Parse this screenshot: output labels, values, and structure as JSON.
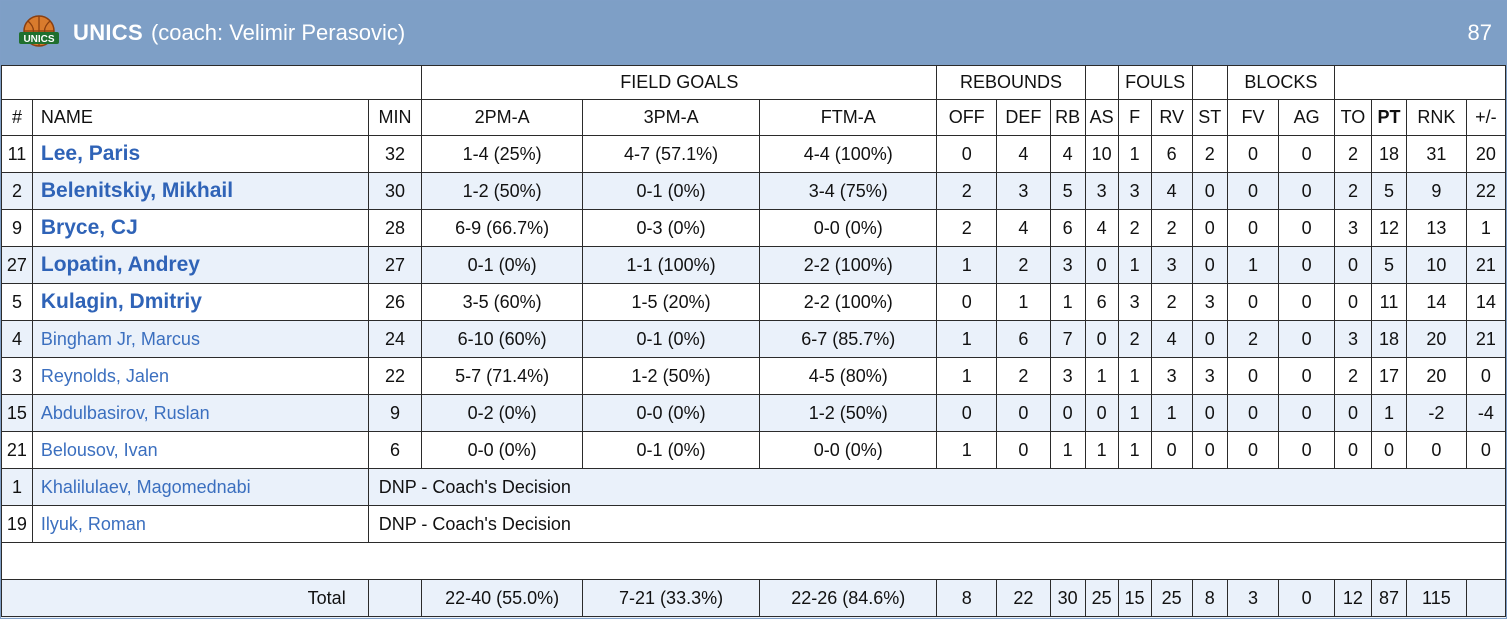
{
  "team": {
    "name": "UNICS",
    "coach": "(coach: Velimir Perasovic)",
    "score": "87",
    "logo_text": "UNICS",
    "colors": {
      "header_bg": "#7e9fc6",
      "row_alt": "#eaf1fa",
      "link": "#2f63b7"
    }
  },
  "groups": {
    "field_goals": "FIELD GOALS",
    "rebounds": "REBOUNDS",
    "fouls": "FOULS",
    "blocks": "BLOCKS"
  },
  "columns": {
    "num": "#",
    "name": "NAME",
    "min": "MIN",
    "p2": "2PM-A",
    "p3": "3PM-A",
    "ft": "FTM-A",
    "off": "OFF",
    "def": "DEF",
    "rb": "RB",
    "as": "AS",
    "f": "F",
    "rv": "RV",
    "st": "ST",
    "fv": "FV",
    "ag": "AG",
    "to": "TO",
    "pt": "PT",
    "rnk": "RNK",
    "pm": "+/-"
  },
  "players": [
    {
      "num": "11",
      "name": "Lee, Paris",
      "min": "32",
      "p2": "1-4 (25%)",
      "p3": "4-7 (57.1%)",
      "ft": "4-4 (100%)",
      "off": "0",
      "def": "4",
      "rb": "4",
      "as": "10",
      "f": "1",
      "rv": "6",
      "st": "2",
      "fv": "0",
      "ag": "0",
      "to": "2",
      "pt": "18",
      "rnk": "31",
      "pm": "20"
    },
    {
      "num": "2",
      "name": "Belenitskiy, Mikhail",
      "min": "30",
      "p2": "1-2 (50%)",
      "p3": "0-1 (0%)",
      "ft": "3-4 (75%)",
      "off": "2",
      "def": "3",
      "rb": "5",
      "as": "3",
      "f": "3",
      "rv": "4",
      "st": "0",
      "fv": "0",
      "ag": "0",
      "to": "2",
      "pt": "5",
      "rnk": "9",
      "pm": "22"
    },
    {
      "num": "9",
      "name": "Bryce, CJ",
      "min": "28",
      "p2": "6-9 (66.7%)",
      "p3": "0-3 (0%)",
      "ft": "0-0 (0%)",
      "off": "2",
      "def": "4",
      "rb": "6",
      "as": "4",
      "f": "2",
      "rv": "2",
      "st": "0",
      "fv": "0",
      "ag": "0",
      "to": "3",
      "pt": "12",
      "rnk": "13",
      "pm": "1"
    },
    {
      "num": "27",
      "name": "Lopatin, Andrey",
      "min": "27",
      "p2": "0-1 (0%)",
      "p3": "1-1 (100%)",
      "ft": "2-2 (100%)",
      "off": "1",
      "def": "2",
      "rb": "3",
      "as": "0",
      "f": "1",
      "rv": "3",
      "st": "0",
      "fv": "1",
      "ag": "0",
      "to": "0",
      "pt": "5",
      "rnk": "10",
      "pm": "21"
    },
    {
      "num": "5",
      "name": "Kulagin, Dmitriy",
      "min": "26",
      "p2": "3-5 (60%)",
      "p3": "1-5 (20%)",
      "ft": "2-2 (100%)",
      "off": "0",
      "def": "1",
      "rb": "1",
      "as": "6",
      "f": "3",
      "rv": "2",
      "st": "3",
      "fv": "0",
      "ag": "0",
      "to": "0",
      "pt": "11",
      "rnk": "14",
      "pm": "14"
    },
    {
      "num": "4",
      "name": "Bingham Jr, Marcus",
      "min": "24",
      "p2": "6-10 (60%)",
      "p3": "0-1 (0%)",
      "ft": "6-7 (85.7%)",
      "off": "1",
      "def": "6",
      "rb": "7",
      "as": "0",
      "f": "2",
      "rv": "4",
      "st": "0",
      "fv": "2",
      "ag": "0",
      "to": "3",
      "pt": "18",
      "rnk": "20",
      "pm": "21"
    },
    {
      "num": "3",
      "name": "Reynolds, Jalen",
      "min": "22",
      "p2": "5-7 (71.4%)",
      "p3": "1-2 (50%)",
      "ft": "4-5 (80%)",
      "off": "1",
      "def": "2",
      "rb": "3",
      "as": "1",
      "f": "1",
      "rv": "3",
      "st": "3",
      "fv": "0",
      "ag": "0",
      "to": "2",
      "pt": "17",
      "rnk": "20",
      "pm": "0"
    },
    {
      "num": "15",
      "name": "Abdulbasirov, Ruslan",
      "min": "9",
      "p2": "0-2 (0%)",
      "p3": "0-0 (0%)",
      "ft": "1-2 (50%)",
      "off": "0",
      "def": "0",
      "rb": "0",
      "as": "0",
      "f": "1",
      "rv": "1",
      "st": "0",
      "fv": "0",
      "ag": "0",
      "to": "0",
      "pt": "1",
      "rnk": "-2",
      "pm": "-4"
    },
    {
      "num": "21",
      "name": "Belousov, Ivan",
      "min": "6",
      "p2": "0-0 (0%)",
      "p3": "0-1 (0%)",
      "ft": "0-0 (0%)",
      "off": "1",
      "def": "0",
      "rb": "1",
      "as": "1",
      "f": "1",
      "rv": "0",
      "st": "0",
      "fv": "0",
      "ag": "0",
      "to": "0",
      "pt": "0",
      "rnk": "0",
      "pm": "0"
    }
  ],
  "dnp": [
    {
      "num": "1",
      "name": "Khalilulaev, Magomednabi",
      "note": "DNP - Coach's Decision"
    },
    {
      "num": "19",
      "name": "Ilyuk, Roman",
      "note": "DNP - Coach's Decision"
    }
  ],
  "total": {
    "label": "Total",
    "min": "",
    "p2": "22-40 (55.0%)",
    "p3": "7-21 (33.3%)",
    "ft": "22-26 (84.6%)",
    "off": "8",
    "def": "22",
    "rb": "30",
    "as": "25",
    "f": "15",
    "rv": "25",
    "st": "8",
    "fv": "3",
    "ag": "0",
    "to": "12",
    "pt": "87",
    "rnk": "115",
    "pm": ""
  }
}
